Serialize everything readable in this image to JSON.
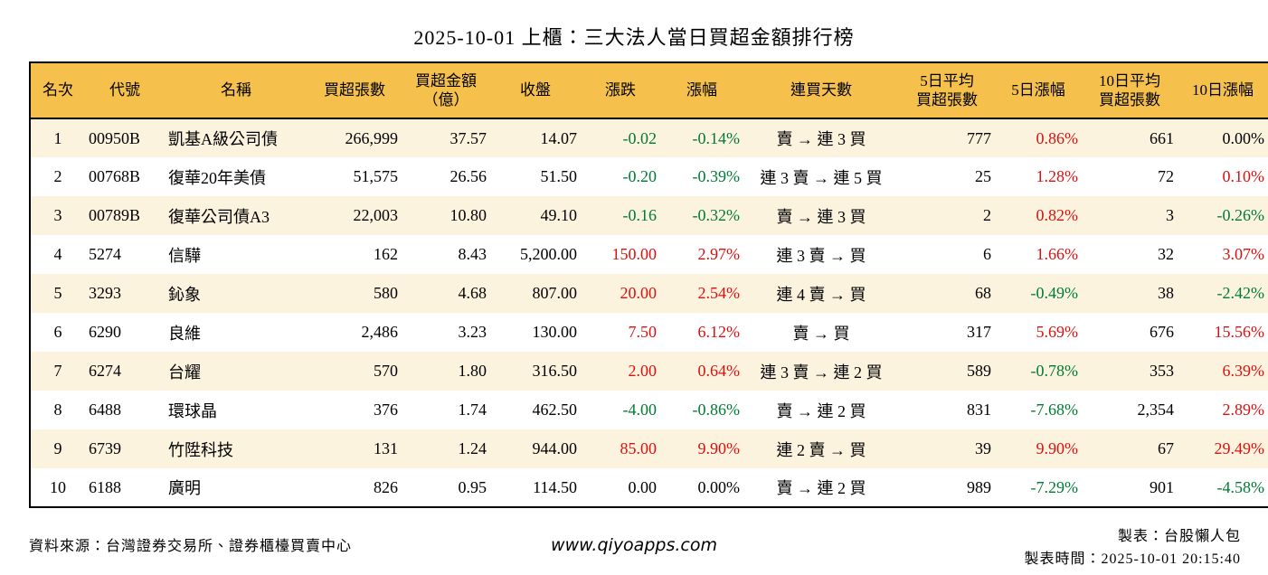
{
  "title": "2025-10-01 上櫃：三大法人當日買超金額排行榜",
  "colors": {
    "header_bg": "#F5C14C",
    "row_alt_bg": "#FBF3DE",
    "up_red": "#DC1010",
    "down_green": "#007B33",
    "border": "#000000"
  },
  "table": {
    "headers": {
      "rank": "名次",
      "code": "代號",
      "name": "名稱",
      "buy_volume": "買超張數",
      "buy_amount_line1": "買超金額",
      "buy_amount_line2": "（億）",
      "close": "收盤",
      "change": "漲跌",
      "change_pct": "漲幅",
      "streak": "連買天數",
      "avg5_line1": "5日平均",
      "avg5_line2": "買超張數",
      "pct5": "5日漲幅",
      "avg10_line1": "10日平均",
      "avg10_line2": "買超張數",
      "pct10": "10日漲幅"
    },
    "rows": [
      {
        "rank": "1",
        "code": "00950B",
        "name": "凱基A級公司債",
        "buy_volume": "266,999",
        "buy_amount": "37.57",
        "close": "14.07",
        "change": "-0.02",
        "change_cls": "down",
        "change_pct": "-0.14%",
        "change_pct_cls": "down",
        "streak": "賣 → 連 3 買",
        "avg5": "777",
        "pct5": "0.86%",
        "pct5_cls": "up",
        "avg10": "661",
        "pct10": "0.00%",
        "pct10_cls": "flat"
      },
      {
        "rank": "2",
        "code": "00768B",
        "name": "復華20年美債",
        "buy_volume": "51,575",
        "buy_amount": "26.56",
        "close": "51.50",
        "change": "-0.20",
        "change_cls": "down",
        "change_pct": "-0.39%",
        "change_pct_cls": "down",
        "streak": "連 3 賣 → 連 5 買",
        "avg5": "25",
        "pct5": "1.28%",
        "pct5_cls": "up",
        "avg10": "72",
        "pct10": "0.10%",
        "pct10_cls": "up"
      },
      {
        "rank": "3",
        "code": "00789B",
        "name": "復華公司債A3",
        "buy_volume": "22,003",
        "buy_amount": "10.80",
        "close": "49.10",
        "change": "-0.16",
        "change_cls": "down",
        "change_pct": "-0.32%",
        "change_pct_cls": "down",
        "streak": "賣 → 連 3 買",
        "avg5": "2",
        "pct5": "0.82%",
        "pct5_cls": "up",
        "avg10": "3",
        "pct10": "-0.26%",
        "pct10_cls": "down"
      },
      {
        "rank": "4",
        "code": "5274",
        "name": "信驊",
        "buy_volume": "162",
        "buy_amount": "8.43",
        "close": "5,200.00",
        "change": "150.00",
        "change_cls": "up",
        "change_pct": "2.97%",
        "change_pct_cls": "up",
        "streak": "連 3 賣 → 買",
        "avg5": "6",
        "pct5": "1.66%",
        "pct5_cls": "up",
        "avg10": "32",
        "pct10": "3.07%",
        "pct10_cls": "up"
      },
      {
        "rank": "5",
        "code": "3293",
        "name": "鈊象",
        "buy_volume": "580",
        "buy_amount": "4.68",
        "close": "807.00",
        "change": "20.00",
        "change_cls": "up",
        "change_pct": "2.54%",
        "change_pct_cls": "up",
        "streak": "連 4 賣 → 買",
        "avg5": "68",
        "pct5": "-0.49%",
        "pct5_cls": "down",
        "avg10": "38",
        "pct10": "-2.42%",
        "pct10_cls": "down"
      },
      {
        "rank": "6",
        "code": "6290",
        "name": "良維",
        "buy_volume": "2,486",
        "buy_amount": "3.23",
        "close": "130.00",
        "change": "7.50",
        "change_cls": "up",
        "change_pct": "6.12%",
        "change_pct_cls": "up",
        "streak": "賣 → 買",
        "avg5": "317",
        "pct5": "5.69%",
        "pct5_cls": "up",
        "avg10": "676",
        "pct10": "15.56%",
        "pct10_cls": "up"
      },
      {
        "rank": "7",
        "code": "6274",
        "name": "台耀",
        "buy_volume": "570",
        "buy_amount": "1.80",
        "close": "316.50",
        "change": "2.00",
        "change_cls": "up",
        "change_pct": "0.64%",
        "change_pct_cls": "up",
        "streak": "連 3 賣 → 連 2 買",
        "avg5": "589",
        "pct5": "-0.78%",
        "pct5_cls": "down",
        "avg10": "353",
        "pct10": "6.39%",
        "pct10_cls": "up"
      },
      {
        "rank": "8",
        "code": "6488",
        "name": "環球晶",
        "buy_volume": "376",
        "buy_amount": "1.74",
        "close": "462.50",
        "change": "-4.00",
        "change_cls": "down",
        "change_pct": "-0.86%",
        "change_pct_cls": "down",
        "streak": "賣 → 連 2 買",
        "avg5": "831",
        "pct5": "-7.68%",
        "pct5_cls": "down",
        "avg10": "2,354",
        "pct10": "2.89%",
        "pct10_cls": "up"
      },
      {
        "rank": "9",
        "code": "6739",
        "name": "竹陞科技",
        "buy_volume": "131",
        "buy_amount": "1.24",
        "close": "944.00",
        "change": "85.00",
        "change_cls": "up",
        "change_pct": "9.90%",
        "change_pct_cls": "up",
        "streak": "連 2 賣 → 買",
        "avg5": "39",
        "pct5": "9.90%",
        "pct5_cls": "up",
        "avg10": "67",
        "pct10": "29.49%",
        "pct10_cls": "up"
      },
      {
        "rank": "10",
        "code": "6188",
        "name": "廣明",
        "buy_volume": "826",
        "buy_amount": "0.95",
        "close": "114.50",
        "change": "0.00",
        "change_cls": "flat",
        "change_pct": "0.00%",
        "change_pct_cls": "flat",
        "streak": "賣 → 連 2 買",
        "avg5": "989",
        "pct5": "-7.29%",
        "pct5_cls": "down",
        "avg10": "901",
        "pct10": "-4.58%",
        "pct10_cls": "down"
      }
    ]
  },
  "footer": {
    "source": "資料來源：台灣證券交易所、證券櫃檯買賣中心",
    "site": "www.qiyoapps.com",
    "author": "製表：台股懶人包",
    "generated": "製表時間：2025-10-01 20:15:40"
  }
}
